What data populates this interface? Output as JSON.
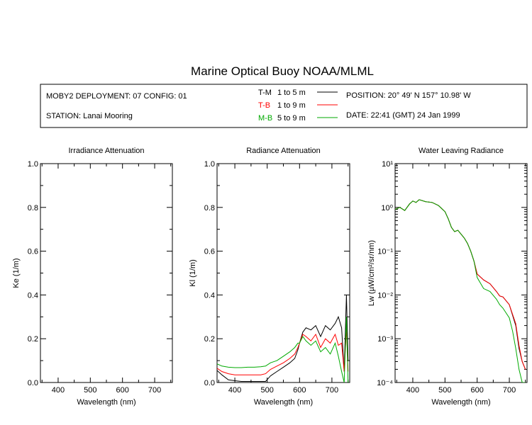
{
  "title": "Marine Optical Buoy NOAA/MLML",
  "info": {
    "deployment": "MOBY2 DEPLOYMENT: 07 CONFIG: 01",
    "station": "STATION: Lanai Mooring",
    "position": "POSITION: 20° 49' N   157° 10.98' W",
    "date": "DATE: 22:41 (GMT) 24 Jan 1999",
    "legend": [
      {
        "code": "T-M",
        "range": "1 to 5  m",
        "color": "#000000"
      },
      {
        "code": "T-B",
        "range": "1 to 9  m",
        "color": "#ff0000"
      },
      {
        "code": "M-B",
        "range": "5 to 9  m",
        "color": "#00aa00"
      }
    ]
  },
  "chart_data": [
    {
      "type": "line",
      "title": "Irradiance Attenuation",
      "xlabel": "Wavelength (nm)",
      "ylabel": "Ke  (1/m)",
      "xlim": [
        345,
        755
      ],
      "ylim": [
        0,
        1
      ],
      "xticks": [
        400,
        500,
        600,
        700
      ],
      "yticks": [
        0.0,
        0.2,
        0.4,
        0.6,
        0.8,
        1.0
      ],
      "ytick_labels": [
        "0.0",
        "0.2",
        "0.4",
        "0.6",
        "0.8",
        "1.0"
      ],
      "series": []
    },
    {
      "type": "line",
      "title": "Radiance Attenuation",
      "xlabel": "Wavelength (nm)",
      "ylabel": "Kl  (1/m)",
      "xlim": [
        345,
        755
      ],
      "ylim": [
        0,
        1
      ],
      "xticks": [
        400,
        500,
        600,
        700
      ],
      "yticks": [
        0.0,
        0.2,
        0.4,
        0.6,
        0.8,
        1.0
      ],
      "ytick_labels": [
        "0.0",
        "0.2",
        "0.4",
        "0.6",
        "0.8",
        "1.0"
      ],
      "series": [
        {
          "name": "T-M",
          "color": "#000000",
          "x": [
            345,
            360,
            380,
            400,
            420,
            440,
            460,
            480,
            495,
            510,
            530,
            550,
            570,
            585,
            595,
            600,
            610,
            620,
            635,
            650,
            665,
            680,
            695,
            710,
            720,
            730,
            738,
            745,
            750
          ],
          "y": [
            0.055,
            0.035,
            0.012,
            0.008,
            0.005,
            0.005,
            0.005,
            0.005,
            0.005,
            0.03,
            0.05,
            0.07,
            0.09,
            0.11,
            0.15,
            0.18,
            0.23,
            0.25,
            0.24,
            0.26,
            0.21,
            0.26,
            0.24,
            0.27,
            0.3,
            0.25,
            0.05,
            0.4,
            0.1
          ]
        },
        {
          "name": "T-B",
          "color": "#ff0000",
          "x": [
            345,
            360,
            380,
            400,
            420,
            440,
            460,
            480,
            495,
            510,
            530,
            550,
            570,
            585,
            595,
            600,
            610,
            620,
            635,
            650,
            665,
            680,
            695,
            710,
            720,
            730,
            738,
            745,
            750
          ],
          "y": [
            0.065,
            0.05,
            0.04,
            0.035,
            0.035,
            0.035,
            0.035,
            0.035,
            0.04,
            0.06,
            0.075,
            0.09,
            0.11,
            0.13,
            0.16,
            0.18,
            0.22,
            0.21,
            0.19,
            0.22,
            0.16,
            0.2,
            0.18,
            0.22,
            0.17,
            0.18,
            0.05,
            0.25,
            0.05
          ]
        },
        {
          "name": "M-B",
          "color": "#00aa00",
          "x": [
            345,
            360,
            380,
            400,
            420,
            440,
            460,
            480,
            495,
            510,
            530,
            550,
            570,
            585,
            595,
            600,
            610,
            620,
            635,
            650,
            665,
            680,
            695,
            710,
            720,
            730,
            738,
            745,
            750
          ],
          "y": [
            0.085,
            0.075,
            0.07,
            0.068,
            0.068,
            0.07,
            0.07,
            0.072,
            0.075,
            0.09,
            0.1,
            0.12,
            0.14,
            0.16,
            0.18,
            0.18,
            0.21,
            0.19,
            0.17,
            0.19,
            0.14,
            0.16,
            0.13,
            0.18,
            0.12,
            0.05,
            0.0,
            0.3,
            0.0
          ]
        }
      ]
    },
    {
      "type": "line",
      "title": "Water Leaving Radiance",
      "xlabel": "Wavelength (nm)",
      "ylabel": "Lw  (µW/cm²/sr/nm)",
      "xlim": [
        345,
        755
      ],
      "ylim": [
        0.0001,
        10
      ],
      "yscale": "log",
      "xticks": [
        400,
        500,
        600,
        700
      ],
      "yticks": [
        -4,
        -3,
        -2,
        -1,
        0,
        1
      ],
      "ytick_labels": [
        "10⁻⁴",
        "10⁻³",
        "10⁻²",
        "10⁻¹",
        "10⁰",
        "10¹"
      ],
      "series": [
        {
          "name": "T-M",
          "color": "#000000",
          "x": [
            345,
            360,
            375,
            390,
            400,
            410,
            420,
            440,
            460,
            480,
            500,
            510,
            520,
            530,
            540,
            560,
            570,
            580,
            590,
            600,
            620,
            640,
            660,
            670,
            680,
            700,
            720,
            730,
            740,
            750
          ],
          "y": [
            0.9,
            1.0,
            0.85,
            1.2,
            1.4,
            1.3,
            1.5,
            1.35,
            1.3,
            1.1,
            0.8,
            0.55,
            0.35,
            0.28,
            0.3,
            0.2,
            0.15,
            0.1,
            0.06,
            0.03,
            0.022,
            0.018,
            0.012,
            0.0095,
            0.009,
            0.006,
            0.002,
            0.0006,
            0.0003,
            0.0002
          ]
        },
        {
          "name": "T-B",
          "color": "#ff0000",
          "x": [
            345,
            360,
            375,
            390,
            400,
            410,
            420,
            440,
            460,
            480,
            500,
            510,
            520,
            530,
            540,
            560,
            570,
            580,
            590,
            600,
            620,
            640,
            660,
            670,
            680,
            700,
            720,
            730,
            740,
            750
          ],
          "y": [
            0.9,
            1.0,
            0.85,
            1.2,
            1.4,
            1.3,
            1.5,
            1.35,
            1.3,
            1.1,
            0.8,
            0.55,
            0.35,
            0.28,
            0.3,
            0.2,
            0.15,
            0.1,
            0.06,
            0.03,
            0.022,
            0.018,
            0.012,
            0.0095,
            0.009,
            0.006,
            0.0022,
            0.0007,
            0.0003,
            0.0002
          ]
        },
        {
          "name": "M-B",
          "color": "#00aa00",
          "x": [
            345,
            360,
            375,
            390,
            400,
            410,
            420,
            440,
            460,
            480,
            500,
            510,
            520,
            530,
            540,
            560,
            570,
            580,
            590,
            600,
            620,
            640,
            660,
            670,
            680,
            700,
            710,
            720,
            730,
            740,
            750
          ],
          "y": [
            0.9,
            1.0,
            0.85,
            1.2,
            1.4,
            1.3,
            1.5,
            1.35,
            1.3,
            1.1,
            0.8,
            0.55,
            0.35,
            0.28,
            0.3,
            0.2,
            0.15,
            0.1,
            0.06,
            0.025,
            0.014,
            0.012,
            0.008,
            0.006,
            0.005,
            0.003,
            0.0015,
            0.0006,
            0.0002,
            0.0001,
            0.0001
          ]
        }
      ]
    }
  ]
}
